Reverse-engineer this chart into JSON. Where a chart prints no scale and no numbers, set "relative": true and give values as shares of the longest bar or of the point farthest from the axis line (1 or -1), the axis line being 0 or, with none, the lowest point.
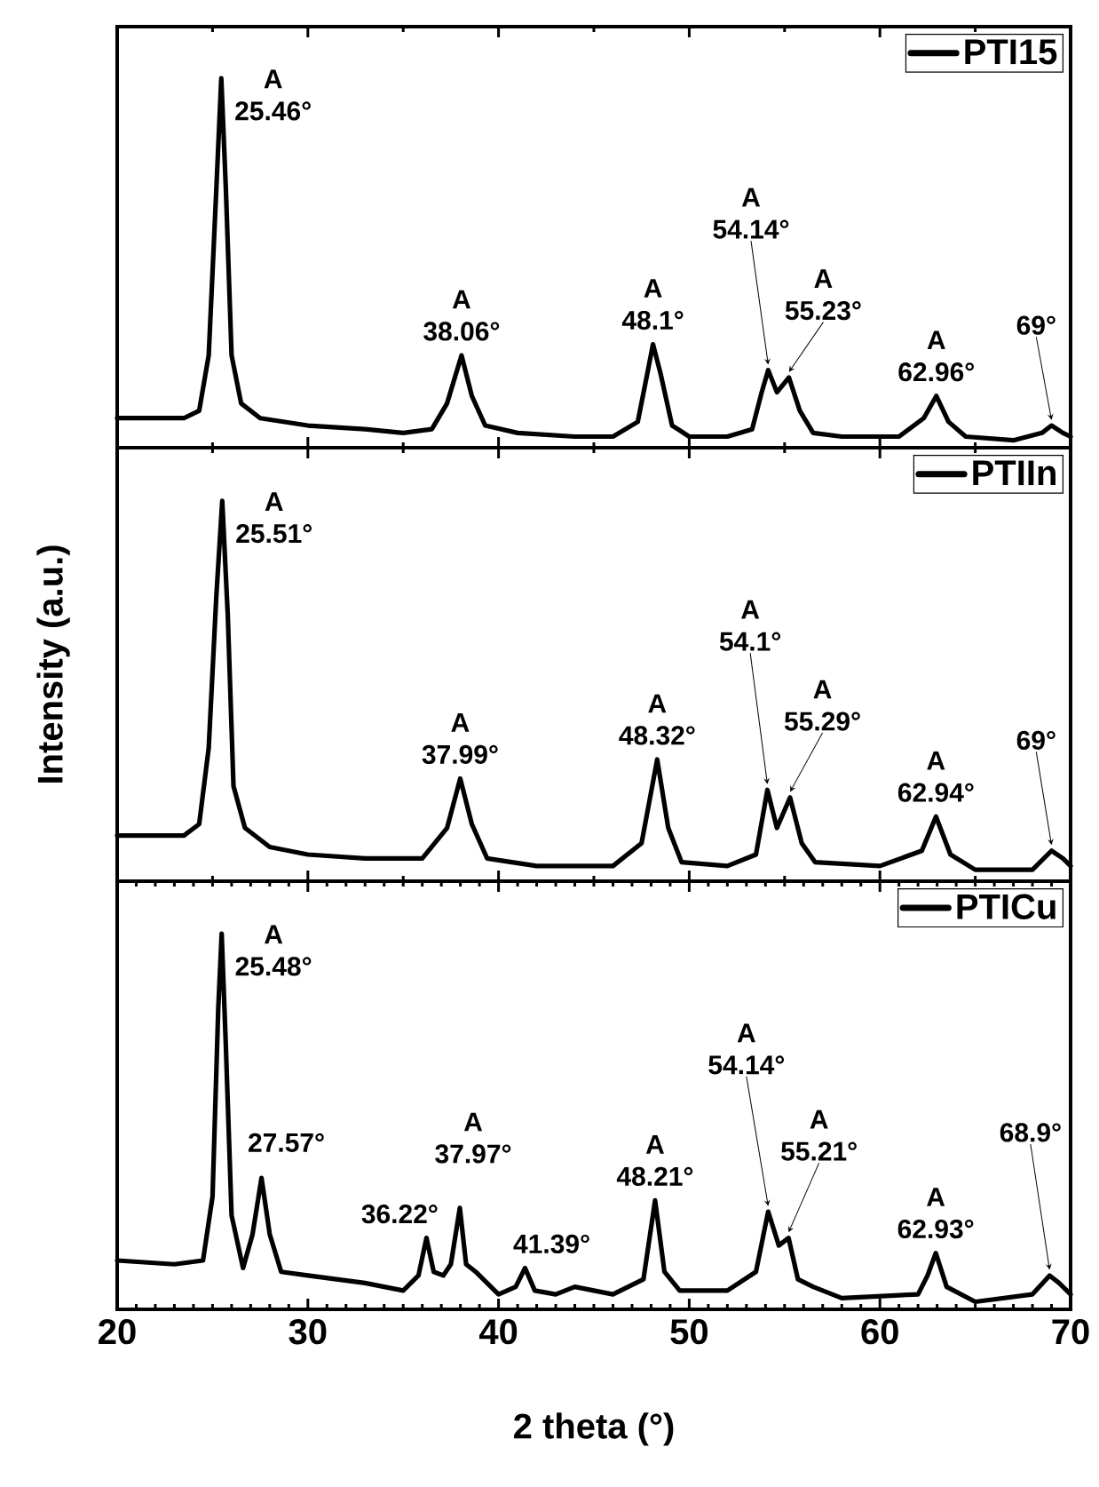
{
  "chart_data": [
    {
      "type": "line",
      "relative": true,
      "xlim": [
        20,
        70
      ],
      "xticks": [
        20,
        30,
        40,
        50,
        60,
        70
      ],
      "tick_labels": false,
      "legend": "top right",
      "x": [
        20,
        22,
        23.5,
        24.3,
        24.8,
        25.2,
        25.46,
        25.7,
        26.0,
        26.5,
        27.5,
        30,
        33,
        35,
        36.5,
        37.3,
        38.06,
        38.6,
        39.3,
        41,
        44,
        46,
        47.3,
        47.8,
        48.1,
        48.5,
        49.1,
        50,
        52,
        53.3,
        53.8,
        54.14,
        54.6,
        55.23,
        55.8,
        56.5,
        58,
        61,
        62.3,
        62.96,
        63.6,
        64.5,
        67,
        68.5,
        69,
        69.6,
        70
      ],
      "series": [
        {
          "name": "PTI15",
          "color": "#000000",
          "values": [
            0.08,
            0.08,
            0.08,
            0.1,
            0.25,
            0.7,
            1,
            0.7,
            0.25,
            0.12,
            0.08,
            0.06,
            0.05,
            0.04,
            0.05,
            0.12,
            0.25,
            0.14,
            0.06,
            0.04,
            0.03,
            0.03,
            0.07,
            0.2,
            0.28,
            0.2,
            0.06,
            0.03,
            0.03,
            0.05,
            0.15,
            0.21,
            0.15,
            0.19,
            0.1,
            0.04,
            0.03,
            0.03,
            0.08,
            0.14,
            0.07,
            0.03,
            0.02,
            0.04,
            0.06,
            0.04,
            0.03
          ]
        }
      ],
      "annotations": [
        {
          "text": "A 25.46°",
          "x": 25.46,
          "y": 1
        },
        {
          "text": "A 38.06°",
          "x": 38.06,
          "y": 0.25
        },
        {
          "text": "A 48.1°",
          "x": 48.1,
          "y": 0.28
        },
        {
          "text": "A 54.14°",
          "x": 54.14,
          "y": 0.21
        },
        {
          "text": "A 55.23°",
          "x": 55.23,
          "y": 0.19
        },
        {
          "text": "A 62.96°",
          "x": 62.96,
          "y": 0.14
        },
        {
          "text": "69°",
          "x": 69,
          "y": 0.06
        }
      ]
    },
    {
      "type": "line",
      "relative": true,
      "xlim": [
        20,
        70
      ],
      "xticks": [
        20,
        30,
        40,
        50,
        60,
        70
      ],
      "tick_labels": false,
      "legend": "top right",
      "ylabel": "Intensity (a.u.)",
      "x": [
        20,
        23.5,
        24.3,
        24.8,
        25.2,
        25.51,
        25.8,
        26.1,
        26.7,
        28,
        30,
        33,
        36,
        37.3,
        37.99,
        38.6,
        39.4,
        42,
        46,
        47.5,
        48.32,
        48.9,
        49.6,
        52,
        53.5,
        54.1,
        54.6,
        55.29,
        55.9,
        56.6,
        60,
        62.2,
        62.94,
        63.7,
        65,
        68,
        69,
        69.6,
        70
      ],
      "series": [
        {
          "name": "PTIIn",
          "color": "#000000",
          "values": [
            0.12,
            0.12,
            0.15,
            0.35,
            0.75,
            1,
            0.7,
            0.25,
            0.14,
            0.09,
            0.07,
            0.06,
            0.06,
            0.14,
            0.27,
            0.15,
            0.06,
            0.04,
            0.04,
            0.1,
            0.32,
            0.14,
            0.05,
            0.04,
            0.07,
            0.24,
            0.14,
            0.22,
            0.1,
            0.05,
            0.04,
            0.08,
            0.17,
            0.07,
            0.03,
            0.03,
            0.08,
            0.06,
            0.04
          ]
        }
      ],
      "annotations": [
        {
          "text": "A 25.51°",
          "x": 25.51,
          "y": 1
        },
        {
          "text": "A 37.99°",
          "x": 37.99,
          "y": 0.27
        },
        {
          "text": "A 48.32°",
          "x": 48.32,
          "y": 0.32
        },
        {
          "text": "A 54.1°",
          "x": 54.1,
          "y": 0.24
        },
        {
          "text": "A 55.29°",
          "x": 55.29,
          "y": 0.22
        },
        {
          "text": "A 62.94°",
          "x": 62.94,
          "y": 0.17
        },
        {
          "text": "69°",
          "x": 69,
          "y": 0.08
        }
      ]
    },
    {
      "type": "line",
      "relative": true,
      "xlim": [
        20,
        70
      ],
      "xticks": [
        20,
        30,
        40,
        50,
        60,
        70
      ],
      "tick_labels": "x",
      "legend": "top right",
      "xlabel": "2 theta (°)",
      "x": [
        20,
        23,
        24.5,
        25.0,
        25.3,
        25.48,
        25.7,
        26.0,
        26.6,
        27.1,
        27.57,
        28.0,
        28.6,
        30,
        33,
        35,
        35.8,
        36.22,
        36.6,
        37.1,
        37.5,
        37.97,
        38.3,
        38.8,
        40,
        40.9,
        41.39,
        41.9,
        43,
        44,
        46,
        47.6,
        48.21,
        48.7,
        49.5,
        52,
        53.5,
        54.14,
        54.7,
        55.21,
        55.7,
        56.5,
        58,
        62,
        62.5,
        62.93,
        63.5,
        65,
        68,
        68.9,
        69.4,
        70
      ],
      "series": [
        {
          "name": "PTICu",
          "color": "#000000",
          "values": [
            0.13,
            0.12,
            0.13,
            0.3,
            0.8,
            1,
            0.7,
            0.25,
            0.11,
            0.2,
            0.35,
            0.2,
            0.1,
            0.09,
            0.07,
            0.05,
            0.09,
            0.19,
            0.1,
            0.09,
            0.12,
            0.27,
            0.12,
            0.1,
            0.04,
            0.06,
            0.11,
            0.05,
            0.04,
            0.06,
            0.04,
            0.08,
            0.29,
            0.1,
            0.05,
            0.05,
            0.1,
            0.26,
            0.17,
            0.19,
            0.08,
            0.06,
            0.03,
            0.04,
            0.09,
            0.15,
            0.06,
            0.02,
            0.04,
            0.09,
            0.07,
            0.04
          ]
        }
      ],
      "annotations": [
        {
          "text": "A 25.48°",
          "x": 25.48,
          "y": 1
        },
        {
          "text": "27.57°",
          "x": 27.57,
          "y": 0.35
        },
        {
          "text": "36.22°",
          "x": 36.22,
          "y": 0.19
        },
        {
          "text": "A 37.97°",
          "x": 37.97,
          "y": 0.27
        },
        {
          "text": "41.39°",
          "x": 41.39,
          "y": 0.11
        },
        {
          "text": "A 48.21°",
          "x": 48.21,
          "y": 0.29
        },
        {
          "text": "A 54.14°",
          "x": 54.14,
          "y": 0.26
        },
        {
          "text": "A 55.21°",
          "x": 55.21,
          "y": 0.19
        },
        {
          "text": "A 62.93°",
          "x": 62.93,
          "y": 0.15
        },
        {
          "text": "68.9°",
          "x": 68.9,
          "y": 0.09
        }
      ]
    }
  ]
}
